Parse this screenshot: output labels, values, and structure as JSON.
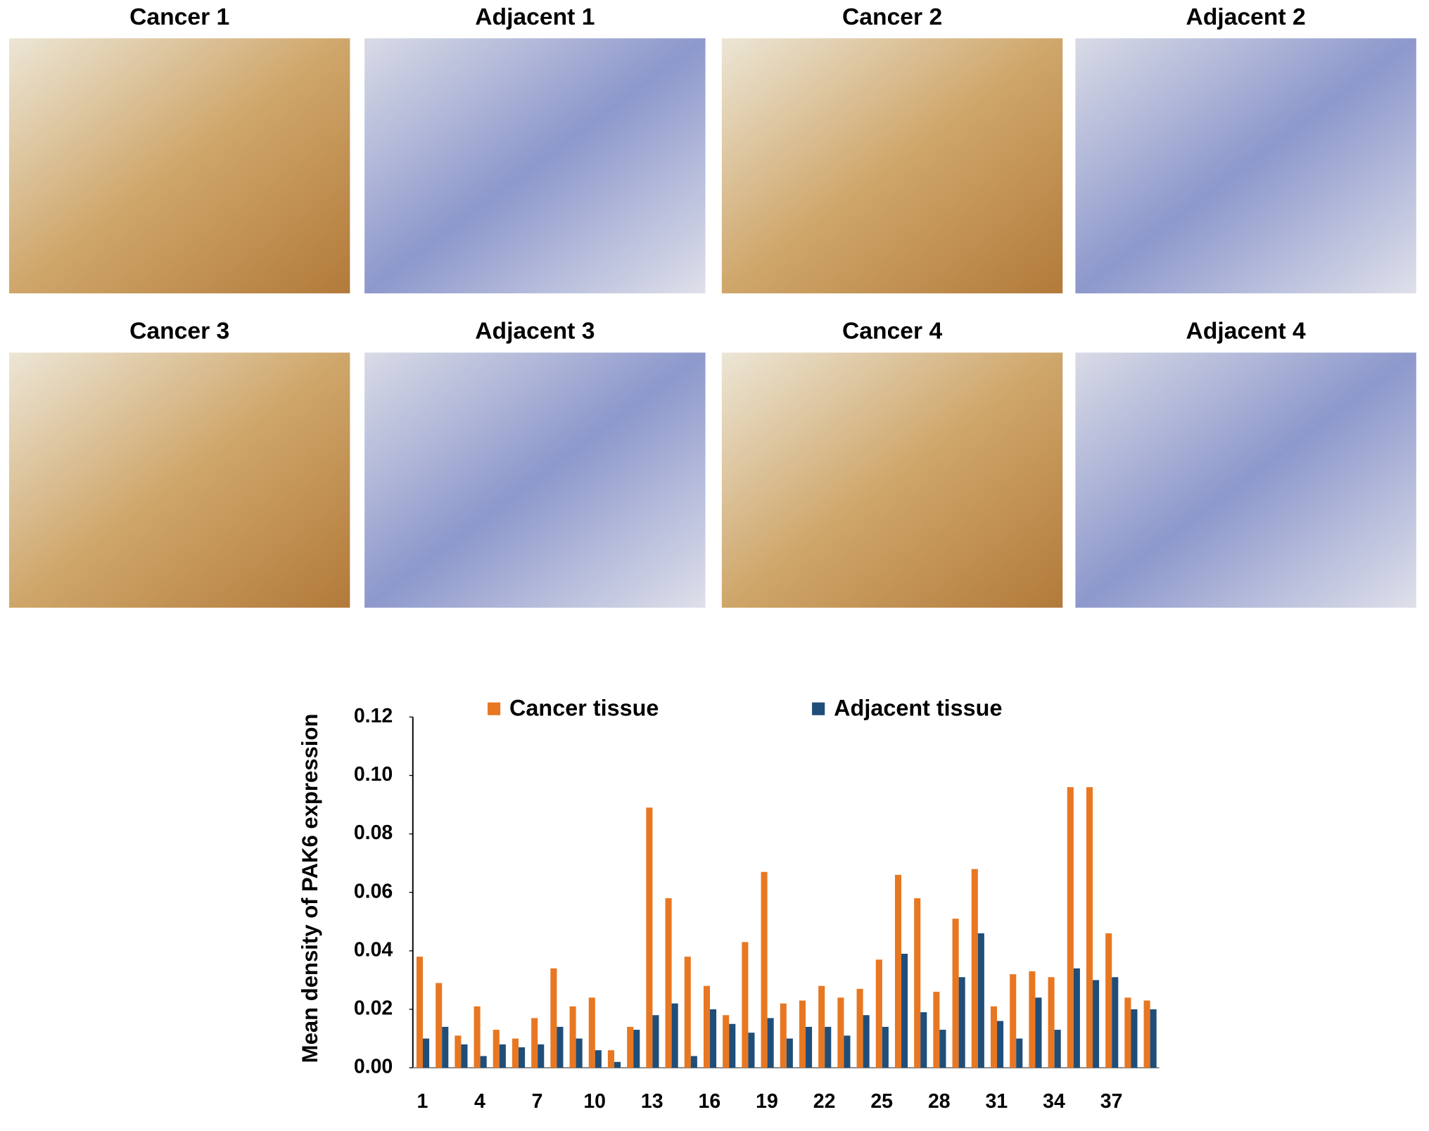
{
  "panels": [
    {
      "label": "Cancer 1"
    },
    {
      "label": "Adjacent 1"
    },
    {
      "label": "Cancer 2"
    },
    {
      "label": "Adjacent 2"
    },
    {
      "label": "Cancer 3"
    },
    {
      "label": "Adjacent 3"
    },
    {
      "label": "Cancer 4"
    },
    {
      "label": "Adjacent 4"
    }
  ],
  "chart_data": {
    "type": "bar",
    "y_label": "Mean density of  PAK6 expression",
    "categories": [
      1,
      null,
      null,
      4,
      null,
      null,
      7,
      null,
      null,
      10,
      null,
      null,
      13,
      null,
      null,
      16,
      null,
      null,
      19,
      null,
      null,
      22,
      null,
      null,
      25,
      null,
      null,
      28,
      null,
      null,
      31,
      null,
      null,
      34,
      null,
      null,
      37,
      null,
      null
    ],
    "series": [
      {
        "name": "Cancer tissue",
        "color": "#e87722",
        "values": [
          0.038,
          0.029,
          0.011,
          0.021,
          0.013,
          0.01,
          0.017,
          0.034,
          0.021,
          0.024,
          0.006,
          0.014,
          0.089,
          0.058,
          0.038,
          0.028,
          0.018,
          0.043,
          0.067,
          0.022,
          0.023,
          0.028,
          0.024,
          0.027,
          0.037,
          0.066,
          0.058,
          0.026,
          0.051,
          0.068,
          0.021,
          0.032,
          0.033,
          0.031,
          0.096,
          0.096,
          0.046,
          0.024,
          0.023
        ]
      },
      {
        "name": "Adjacent tissue",
        "color": "#1f4e79",
        "values": [
          0.01,
          0.014,
          0.008,
          0.004,
          0.008,
          0.007,
          0.008,
          0.014,
          0.01,
          0.006,
          0.002,
          0.013,
          0.018,
          0.022,
          0.004,
          0.02,
          0.015,
          0.012,
          0.017,
          0.01,
          0.014,
          0.014,
          0.011,
          0.018,
          0.014,
          0.039,
          0.019,
          0.013,
          0.031,
          0.046,
          0.016,
          0.01,
          0.024,
          0.013,
          0.034,
          0.03,
          0.031,
          0.02,
          0.02
        ]
      }
    ],
    "ylim": [
      0,
      0.12
    ],
    "yticks": [
      {
        "value": 0,
        "label": "0.00"
      },
      {
        "value": 0.02,
        "label": "0.02"
      },
      {
        "value": 0.04,
        "label": "0.04"
      },
      {
        "value": 0.06,
        "label": "0.06"
      },
      {
        "value": 0.08,
        "label": "0.08"
      },
      {
        "value": 0.1,
        "label": "0.10"
      },
      {
        "value": 0.12,
        "label": "0.12"
      }
    ]
  }
}
